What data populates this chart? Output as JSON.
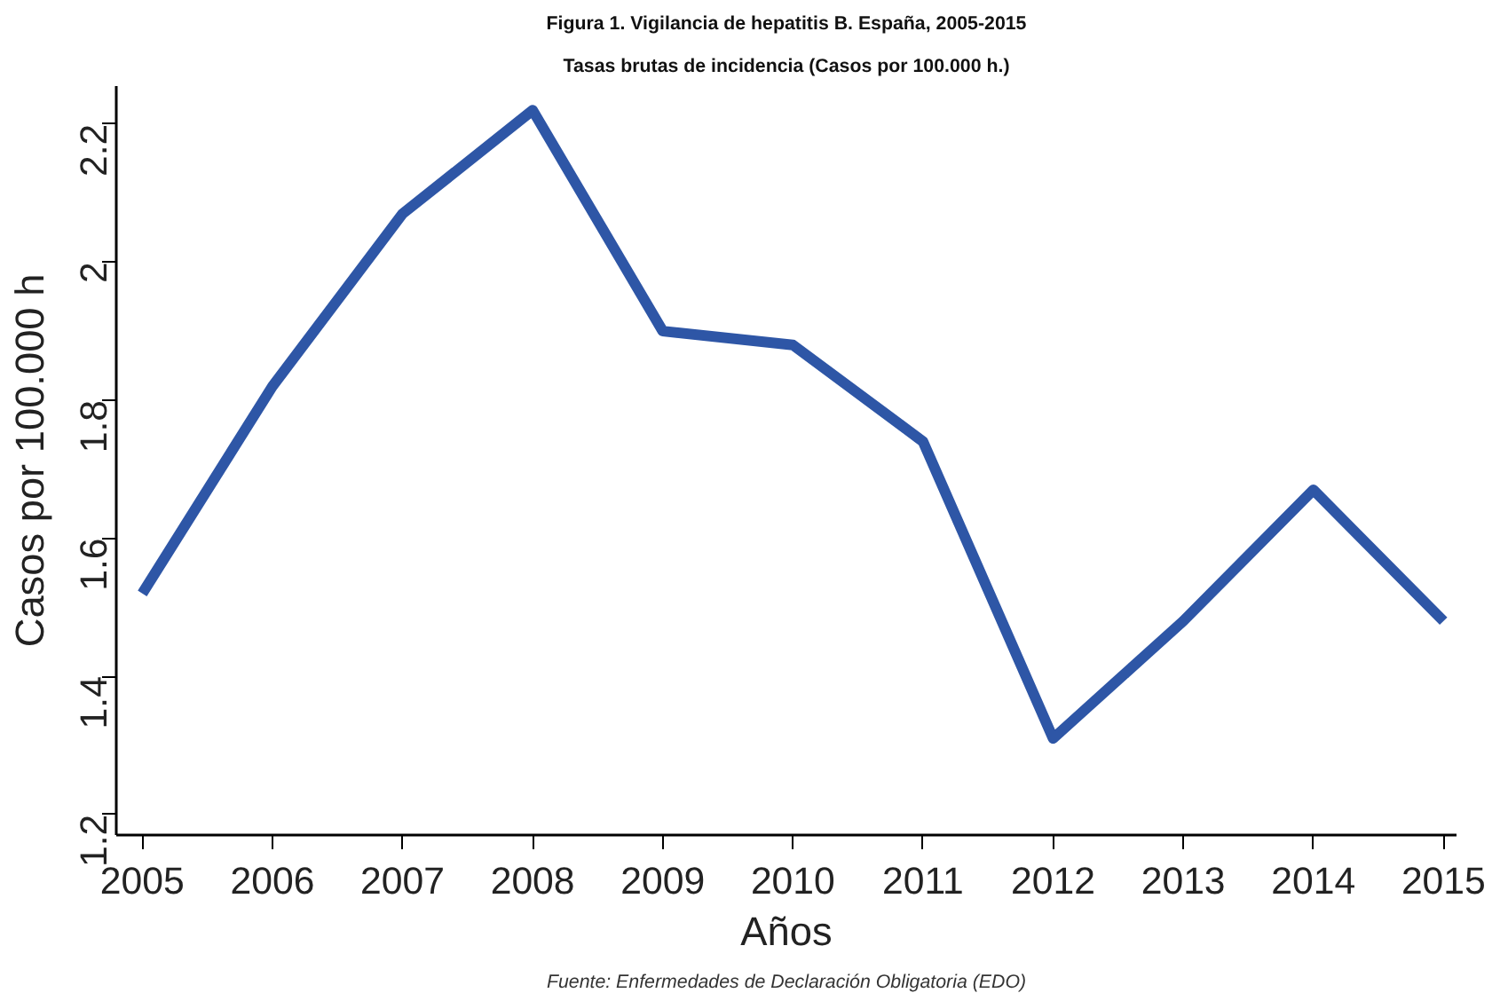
{
  "chart_data": {
    "type": "line",
    "title": "Figura 1. Vigilancia de hepatitis B. España, 2005-2015",
    "subtitle": "Tasas brutas de incidencia (Casos por 100.000 h.)",
    "xlabel": "Años",
    "ylabel": "Casos por 100.000 h",
    "annotations": [
      "Fuente: Enfermedades de Declaración Obligatoria (EDO)"
    ],
    "x": [
      2005,
      2006,
      2007,
      2008,
      2009,
      2010,
      2011,
      2012,
      2013,
      2014,
      2015
    ],
    "series": [
      {
        "color": "#2e56a6",
        "values": [
          1.52,
          1.82,
          2.07,
          2.22,
          1.9,
          1.88,
          1.74,
          1.31,
          1.48,
          1.67,
          1.48
        ]
      }
    ],
    "xlim": [
      2004.8,
      2015.1
    ],
    "xticks": [
      2005,
      2006,
      2007,
      2008,
      2009,
      2010,
      2011,
      2012,
      2013,
      2014,
      2015
    ],
    "ylim": [
      1.17,
      2.255
    ],
    "yticks": [
      1.2,
      1.4,
      1.6,
      1.8,
      2,
      2.2
    ],
    "grid": false,
    "marker": "none",
    "line_style": "solid"
  }
}
